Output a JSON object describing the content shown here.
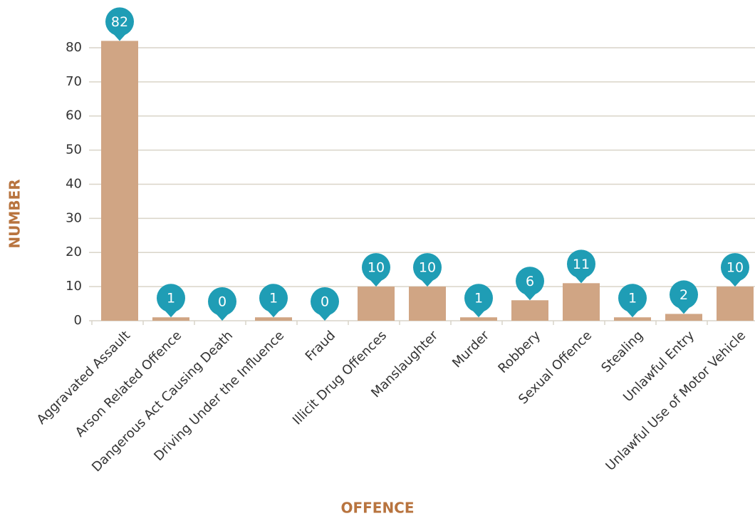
{
  "chart_data": {
    "type": "bar",
    "x_label": "OFFENCE",
    "y_label": "NUMBER",
    "categories": [
      "Aggravated Assault",
      "Arson Related Offence",
      "Dangerous Act Causing Death",
      "Driving Under the Influence",
      "Fraud",
      "Illicit Drug Offences",
      "Manslaughter",
      "Murder",
      "Robbery",
      "Sexual Offence",
      "Stealing",
      "Unlawful Entry",
      "Unlawful Use of Motor Vehicle"
    ],
    "values": [
      82,
      1,
      0,
      1,
      0,
      10,
      10,
      1,
      6,
      11,
      1,
      2,
      10
    ],
    "color": "#d0a584",
    "marker_color": "#1f9db5",
    "ylim": [
      0,
      85
    ],
    "yticks": [
      0,
      10,
      20,
      30,
      40,
      50,
      60,
      70,
      80
    ],
    "grid": true
  }
}
